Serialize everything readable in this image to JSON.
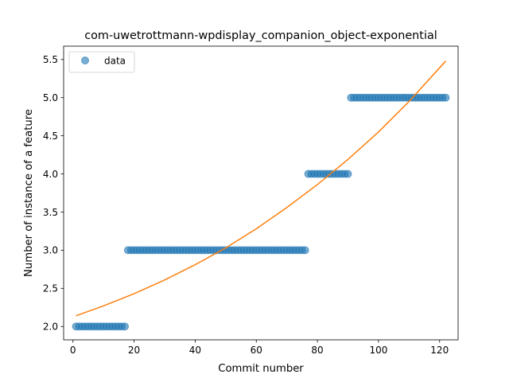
{
  "chart_data": {
    "type": "scatter",
    "title": "com-uwetrottmann-wpdisplay_companion_object-exponential",
    "xlabel": "Commit number",
    "ylabel": "Number of instance of a feature",
    "xlim": [
      -3.05,
      126.05
    ],
    "ylim": [
      1.825,
      5.675
    ],
    "xticks": [
      0,
      20,
      40,
      60,
      80,
      100,
      120
    ],
    "yticks": [
      2.0,
      2.5,
      3.0,
      3.5,
      4.0,
      4.5,
      5.0,
      5.5
    ],
    "grid": false,
    "legend": {
      "placement": "top-left",
      "entries": [
        "data"
      ]
    },
    "series": [
      {
        "name": "data",
        "kind": "scatter",
        "color": "#1f77b4",
        "alpha": 0.6,
        "segments": [
          {
            "x_from": 1,
            "x_to": 17,
            "y": 2.0
          },
          {
            "x_from": 18,
            "x_to": 76,
            "y": 3.0
          },
          {
            "x_from": 77,
            "x_to": 90,
            "y": 4.0
          },
          {
            "x_from": 91,
            "x_to": 122,
            "y": 5.0
          }
        ]
      },
      {
        "kind": "line",
        "color": "#ff7f0e",
        "x": [
          1,
          10,
          20,
          30,
          40,
          50,
          60,
          70,
          80,
          90,
          100,
          110,
          122
        ],
        "y": [
          2.14,
          2.27,
          2.43,
          2.61,
          2.81,
          3.03,
          3.28,
          3.56,
          3.86,
          4.19,
          4.55,
          4.95,
          5.48
        ]
      }
    ]
  }
}
